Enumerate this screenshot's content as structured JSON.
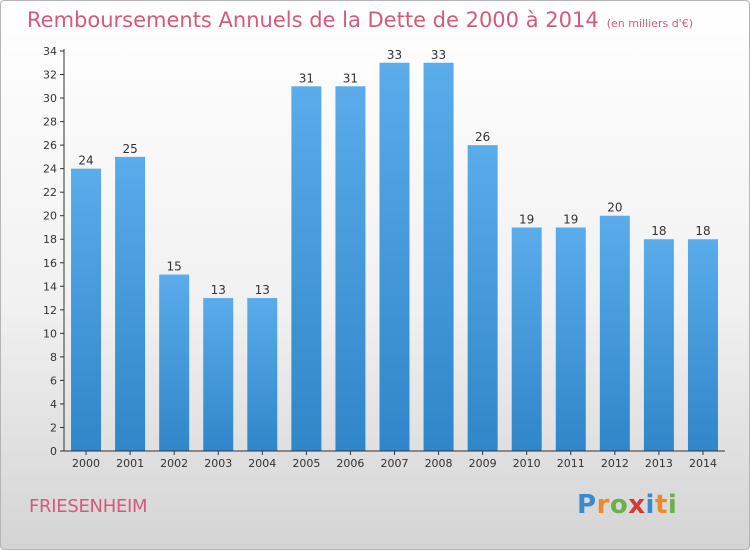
{
  "header": {
    "title": "Remboursements Annuels de la Dette de 2000 à 2014",
    "unit": "(en milliers d'€)"
  },
  "footer": {
    "town": "FRIESENHEIM",
    "brand": "Proxiti",
    "brand_letters": [
      {
        "ch": "P",
        "color": "#3a8ad0"
      },
      {
        "ch": "r",
        "color": "#e98a2c"
      },
      {
        "ch": "o",
        "color": "#6ab04c"
      },
      {
        "ch": "x",
        "color": "#d23a3a"
      },
      {
        "ch": "i",
        "color": "#3a8ad0"
      },
      {
        "ch": "t",
        "color": "#e98a2c"
      },
      {
        "ch": "i",
        "color": "#6ab04c"
      }
    ]
  },
  "chart_data": {
    "type": "bar",
    "categories": [
      "2000",
      "2001",
      "2002",
      "2003",
      "2004",
      "2005",
      "2006",
      "2007",
      "2008",
      "2009",
      "2010",
      "2011",
      "2012",
      "2013",
      "2014"
    ],
    "values": [
      24,
      25,
      15,
      13,
      13,
      31,
      31,
      33,
      33,
      26,
      19,
      19,
      20,
      18,
      18
    ],
    "title": "Remboursements Annuels de la Dette de 2000 à 2014",
    "unit": "(en milliers d'€)",
    "xlabel": "",
    "ylabel": "",
    "ylim": [
      0,
      34
    ],
    "yticks": [
      0,
      2,
      4,
      6,
      8,
      10,
      12,
      14,
      16,
      18,
      20,
      22,
      24,
      26,
      28,
      30,
      32,
      34
    ],
    "grid": false,
    "bar_color_top": "#5aaceb",
    "bar_color_bottom": "#2f86c8",
    "data_labels": true
  }
}
